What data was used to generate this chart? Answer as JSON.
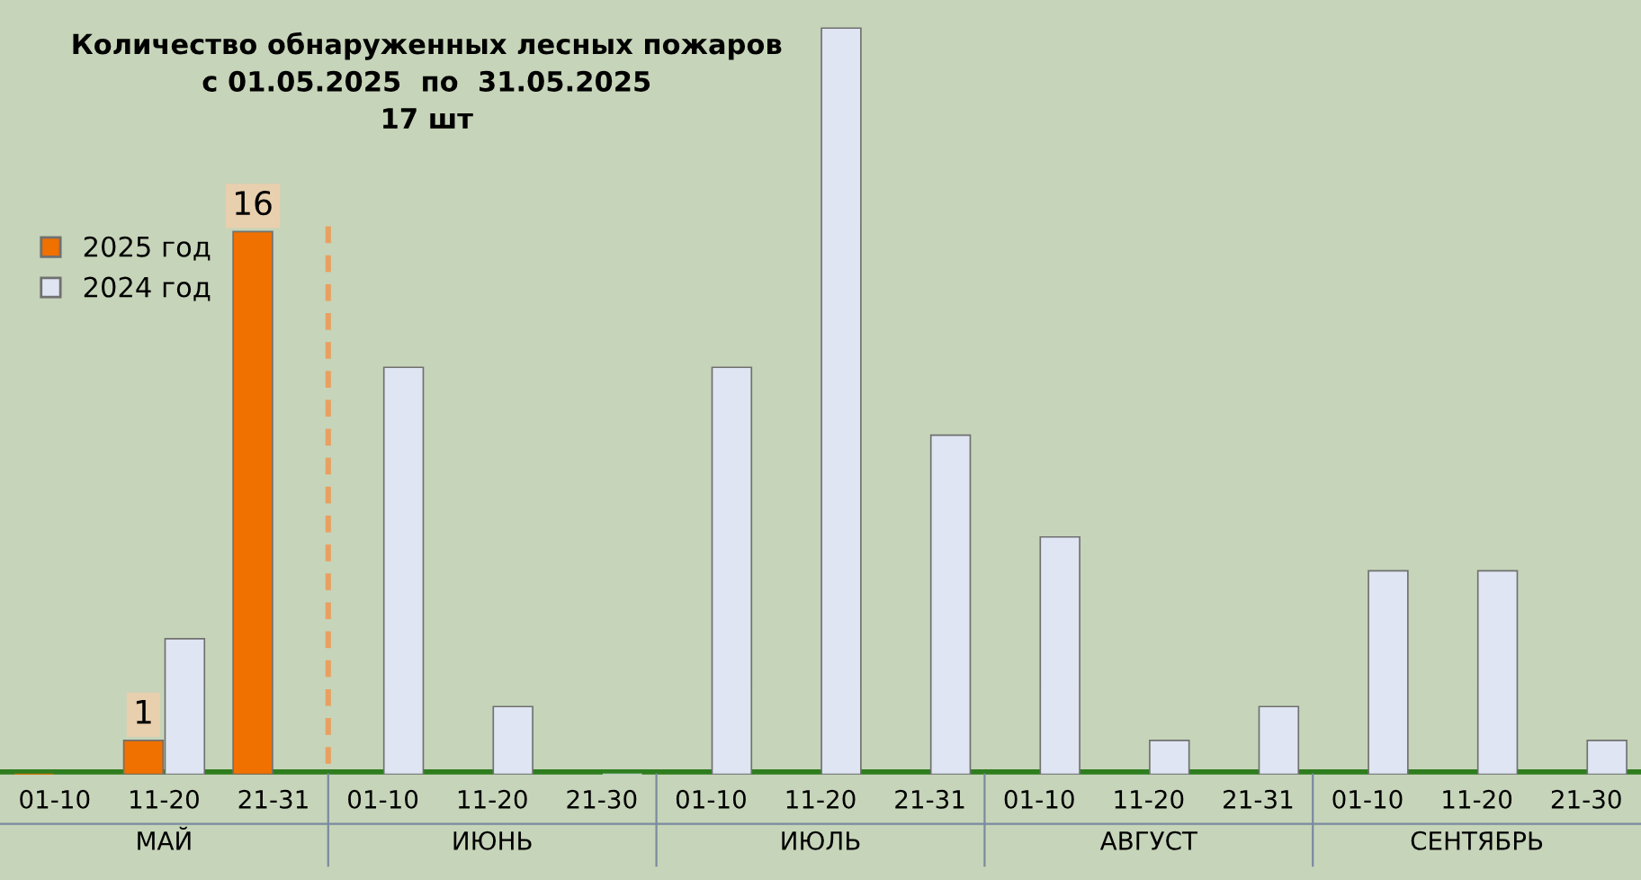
{
  "chart_data": {
    "type": "bar",
    "title": "Количество обнаруженных лесных пожаров\nс 01.05.2025  по  31.05.2025\n17 шт",
    "categories": [
      "01-10",
      "11-20",
      "21-31",
      "01-10",
      "11-20",
      "21-30",
      "01-10",
      "11-20",
      "21-31",
      "01-10",
      "11-20",
      "21-31",
      "01-10",
      "11-20",
      "21-30"
    ],
    "series": [
      {
        "name": "2025 год",
        "color": "#f07000",
        "values": [
          0,
          1,
          16,
          null,
          null,
          null,
          null,
          null,
          null,
          null,
          null,
          null,
          null,
          null,
          null
        ],
        "value_labels": [
          null,
          "1",
          "16",
          null,
          null,
          null,
          null,
          null,
          null,
          null,
          null,
          null,
          null,
          null,
          null
        ]
      },
      {
        "name": "2024 год",
        "color": "#dfe5f2",
        "values": [
          null,
          4,
          null,
          12,
          2,
          0,
          12,
          22,
          10,
          7,
          1,
          2,
          6,
          6,
          1
        ]
      }
    ],
    "annotations": [
      "МАЙ",
      "ИЮНЬ",
      "ИЮЛЬ",
      "АВГУСТ",
      "СЕНТЯБРЬ"
    ],
    "legend": "left",
    "grid": false
  }
}
